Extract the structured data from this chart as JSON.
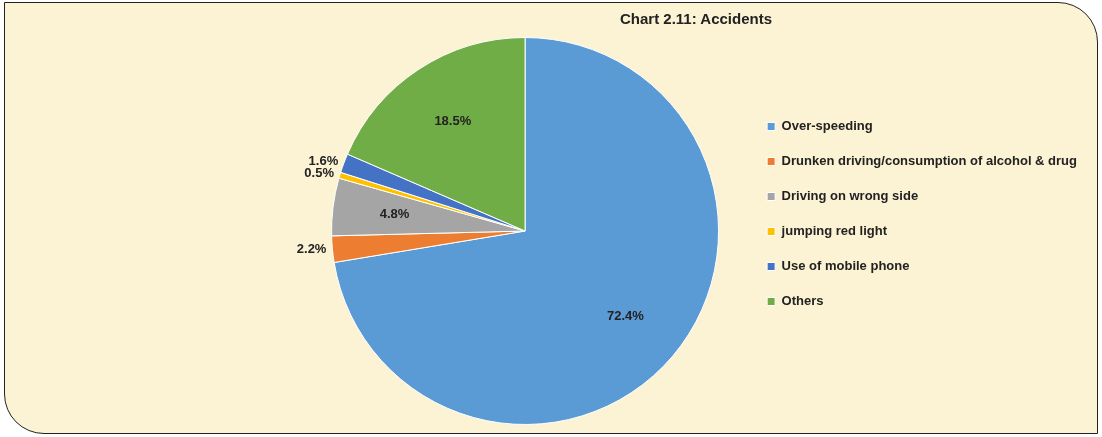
{
  "chart_data": {
    "type": "pie",
    "title": "Chart 2.11: Accidents",
    "categories": [
      "Over-speeding",
      "Drunken driving/consumption of alcohol & drug",
      "Driving on wrong side",
      "jumping red light",
      "Use of mobile phone",
      "Others"
    ],
    "values": [
      72.4,
      2.2,
      4.8,
      0.5,
      1.6,
      18.5
    ],
    "colors": [
      "#5b9bd5",
      "#ed7d31",
      "#a5a5a5",
      "#ffc000",
      "#4472c4",
      "#70ad47"
    ],
    "value_labels": [
      "72.4%",
      "2.2%",
      "4.8%",
      "0.5%",
      "1.6%",
      "18.5%"
    ],
    "legend": "right"
  }
}
